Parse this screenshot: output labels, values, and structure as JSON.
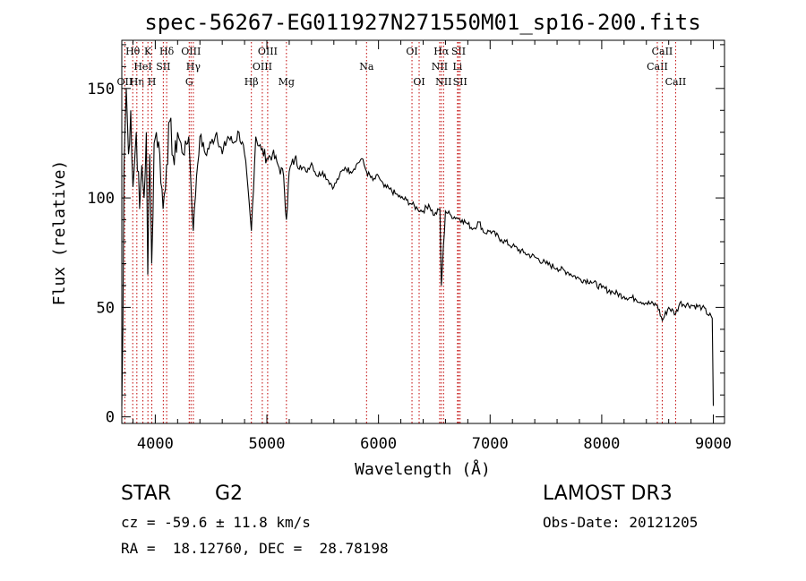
{
  "chart_data": {
    "type": "line",
    "title": "spec-56267-EG011927N271550M01_sp16-200.fits",
    "xlabel": "Wavelength (Å)",
    "ylabel": "Flux (relative)",
    "xlim": [
      3700,
      9100
    ],
    "ylim": [
      -3,
      172
    ],
    "x_ticks": [
      4000,
      5000,
      6000,
      7000,
      8000,
      9000
    ],
    "x_tick_labels": [
      "4000",
      "5000",
      "6000",
      "7000",
      "8000",
      "9000"
    ],
    "y_ticks": [
      0,
      50,
      100,
      150
    ],
    "y_tick_labels": [
      "0",
      "50",
      "100",
      "150"
    ],
    "grid": false,
    "series": [
      {
        "name": "spectrum",
        "x": [
          3700,
          3710,
          3720,
          3740,
          3760,
          3780,
          3800,
          3830,
          3860,
          3880,
          3900,
          3920,
          3933,
          3950,
          3968,
          3990,
          4010,
          4040,
          4070,
          4101,
          4130,
          4170,
          4200,
          4250,
          4300,
          4340,
          4370,
          4400,
          4450,
          4500,
          4550,
          4600,
          4650,
          4700,
          4750,
          4800,
          4861,
          4900,
          4950,
          5000,
          5050,
          5100,
          5150,
          5175,
          5200,
          5250,
          5300,
          5350,
          5400,
          5450,
          5500,
          5550,
          5600,
          5650,
          5700,
          5750,
          5800,
          5850,
          5893,
          5950,
          6000,
          6050,
          6100,
          6150,
          6200,
          6250,
          6300,
          6350,
          6400,
          6450,
          6500,
          6550,
          6563,
          6600,
          6650,
          6700,
          6750,
          6800,
          6850,
          6900,
          6950,
          7000,
          7100,
          7200,
          7300,
          7400,
          7500,
          7600,
          7700,
          7800,
          7900,
          8000,
          8100,
          8200,
          8300,
          8400,
          8498,
          8542,
          8600,
          8662,
          8700,
          8800,
          8900,
          8990,
          9000
        ],
        "y": [
          5,
          40,
          115,
          150,
          120,
          140,
          105,
          130,
          95,
          115,
          100,
          130,
          65,
          120,
          70,
          125,
          130,
          120,
          95,
          115,
          135,
          115,
          130,
          120,
          128,
          85,
          110,
          128,
          120,
          125,
          130,
          120,
          128,
          125,
          130,
          120,
          85,
          128,
          122,
          118,
          120,
          115,
          110,
          90,
          112,
          118,
          115,
          112,
          116,
          110,
          112,
          108,
          105,
          110,
          114,
          112,
          115,
          118,
          112,
          108,
          110,
          105,
          104,
          102,
          100,
          99,
          97,
          95,
          94,
          97,
          92,
          95,
          60,
          94,
          92,
          91,
          90,
          88,
          86,
          89,
          84,
          85,
          81,
          78,
          75,
          73,
          70,
          68,
          66,
          63,
          62,
          59,
          57,
          55,
          54,
          52,
          51,
          44,
          50,
          47,
          52,
          51,
          50,
          45,
          5
        ]
      }
    ],
    "line_markers": [
      {
        "label": "OII",
        "x": 3727,
        "row": 3
      },
      {
        "label": "Hθ",
        "x": 3798,
        "row": 1
      },
      {
        "label": "Hη",
        "x": 3835,
        "row": 3
      },
      {
        "label": "HeI",
        "x": 3889,
        "row": 2
      },
      {
        "label": "K",
        "x": 3934,
        "row": 1
      },
      {
        "label": "H",
        "x": 3969,
        "row": 3
      },
      {
        "label": "SII",
        "x": 4072,
        "row": 2
      },
      {
        "label": "Hδ",
        "x": 4102,
        "row": 1
      },
      {
        "label": "G",
        "x": 4304,
        "row": 3
      },
      {
        "label": "OIII",
        "x": 4320,
        "row": 1
      },
      {
        "label": "Hγ",
        "x": 4341,
        "row": 2
      },
      {
        "label": "Hβ",
        "x": 4861,
        "row": 3
      },
      {
        "label": "OIII",
        "x": 4959,
        "row": 2
      },
      {
        "label": "OIII",
        "x": 5007,
        "row": 1
      },
      {
        "label": "Mg",
        "x": 5175,
        "row": 3
      },
      {
        "label": "Na",
        "x": 5893,
        "row": 2
      },
      {
        "label": "OI",
        "x": 6300,
        "row": 1
      },
      {
        "label": "OI",
        "x": 6364,
        "row": 3
      },
      {
        "label": "NII",
        "x": 6548,
        "row": 2
      },
      {
        "label": "Hα",
        "x": 6563,
        "row": 1
      },
      {
        "label": "NII",
        "x": 6583,
        "row": 3
      },
      {
        "label": "Li",
        "x": 6708,
        "row": 2
      },
      {
        "label": "SII",
        "x": 6717,
        "row": 1
      },
      {
        "label": "SII",
        "x": 6731,
        "row": 3
      },
      {
        "label": "CaII",
        "x": 8498,
        "row": 2
      },
      {
        "label": "CaII",
        "x": 8542,
        "row": 1
      },
      {
        "label": "CaII",
        "x": 8662,
        "row": 3
      }
    ],
    "colors": {
      "spectrum": "#000000",
      "marker": "#c00000"
    }
  },
  "info": {
    "class_label": "STAR",
    "subclass": "G2",
    "survey": "LAMOST DR3",
    "cz": "cz = -59.6 ± 11.8 km/s",
    "obs_date": "Obs-Date: 20121205",
    "radec": "RA =  18.12760, DEC =  28.78198"
  }
}
